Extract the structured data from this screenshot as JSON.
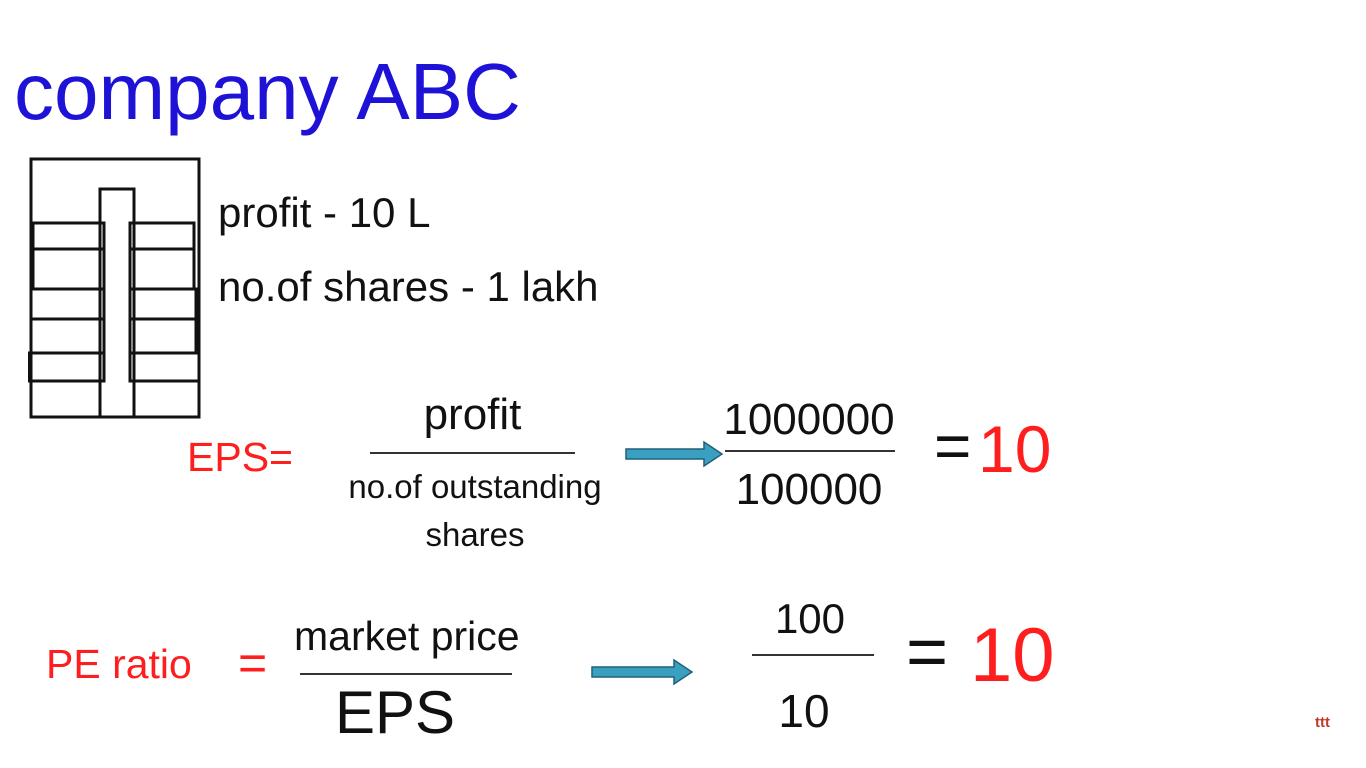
{
  "title": {
    "text": "company ABC",
    "color": "#1d12d6"
  },
  "facts": {
    "profit": "profit - 10 L",
    "shares": "no.of shares - 1 lakh"
  },
  "eps_formula": {
    "label": "EPS=",
    "numerator": "profit",
    "denominator_line1": "no.of outstanding",
    "denominator_line2": "shares",
    "value_numerator": "1000000",
    "value_denominator": "100000",
    "equals": "=",
    "result": "10"
  },
  "pe_formula": {
    "label": "PE ratio",
    "equals_label": "=",
    "numerator": "market price",
    "denominator": "EPS",
    "value_numerator": "100",
    "value_denominator": "10",
    "equals": "=",
    "result": "10"
  },
  "icons": {
    "building": "building-icon",
    "arrow": "arrow-right-icon"
  },
  "colors": {
    "accent_red": "#ff1e1e",
    "arrow_fill": "#3aa0bf",
    "arrow_stroke": "#235f7a"
  },
  "watermark": "ttt"
}
